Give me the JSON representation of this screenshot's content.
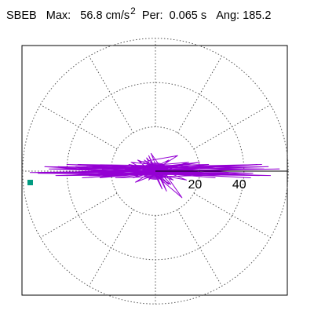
{
  "header": {
    "station": "SBEB",
    "max_label": "Max:",
    "max_value": "56.8",
    "max_unit": "cm/s",
    "max_unit_sup": "2",
    "per_label": "Per:",
    "per_value": "0.065 s",
    "ang_label": "Ang:",
    "ang_value": "185.2"
  },
  "colors": {
    "trace": "#9400d3",
    "peak_marker": "#009b80",
    "frame": "#000000",
    "grid": "#555555"
  },
  "chart_data": {
    "type": "polar-orbit",
    "title": "SBEB",
    "units": "cm/s^2",
    "max": 56.8,
    "period_s": 0.065,
    "angle_deg": 185.2,
    "rings": [
      20,
      40,
      60
    ],
    "ring_labels": [
      "20",
      "40"
    ],
    "spokes_deg": [
      0,
      30,
      60,
      90,
      120,
      150,
      180,
      210,
      240,
      270,
      300,
      330
    ],
    "axis_max": 60,
    "peak_point": {
      "r": 56.8,
      "angle_deg": 185.2
    },
    "orbit_points": [
      [
        0,
        0
      ],
      [
        9,
        2
      ],
      [
        -6,
        -1
      ],
      [
        14,
        3
      ],
      [
        -13,
        1
      ],
      [
        21,
        -2
      ],
      [
        -18,
        -3
      ],
      [
        26,
        2
      ],
      [
        -24,
        1
      ],
      [
        33,
        -1
      ],
      [
        -29,
        -2
      ],
      [
        38,
        1
      ],
      [
        -36,
        2
      ],
      [
        44,
        -1
      ],
      [
        -41,
        -2
      ],
      [
        48,
        3
      ],
      [
        -47,
        1
      ],
      [
        52,
        -2
      ],
      [
        -53,
        -1
      ],
      [
        56,
        1
      ],
      [
        -56.6,
        -0.6
      ],
      [
        47,
        -2
      ],
      [
        -44,
        2
      ],
      [
        37,
        1
      ],
      [
        -33,
        -3
      ],
      [
        28,
        2
      ],
      [
        -22,
        1
      ],
      [
        16,
        -2
      ],
      [
        -12,
        3
      ],
      [
        8,
        -4
      ],
      [
        -5,
        5
      ],
      [
        6,
        -6
      ],
      [
        -7,
        4
      ],
      [
        10,
        7
      ],
      [
        -9,
        -5
      ],
      [
        12,
        3
      ],
      [
        -15,
        -2
      ],
      [
        20,
        4
      ],
      [
        -26,
        -1
      ],
      [
        31,
        2
      ],
      [
        -35,
        3
      ],
      [
        41,
        -1
      ],
      [
        -45,
        -2
      ],
      [
        49,
        1
      ],
      [
        -50,
        2
      ],
      [
        43,
        -3
      ],
      [
        -39,
        1
      ],
      [
        30,
        2
      ],
      [
        -25,
        -3
      ],
      [
        18,
        1
      ],
      [
        -11,
        4
      ],
      [
        7,
        -6
      ],
      [
        -4,
        6
      ],
      [
        3,
        -8
      ],
      [
        -3,
        7
      ],
      [
        5,
        -9
      ],
      [
        -2,
        8
      ],
      [
        12,
        -12
      ],
      [
        -8,
        5
      ],
      [
        14,
        -4
      ],
      [
        -19,
        2
      ],
      [
        24,
        3
      ],
      [
        -30,
        -2
      ],
      [
        35,
        1
      ],
      [
        -40,
        3
      ],
      [
        45,
        -2
      ],
      [
        -48,
        1
      ],
      [
        51,
        2
      ],
      [
        -52,
        -1
      ],
      [
        46,
        3
      ],
      [
        -42,
        -2
      ],
      [
        36,
        1
      ],
      [
        -31,
        2
      ],
      [
        27,
        -3
      ],
      [
        -21,
        1
      ],
      [
        15,
        4
      ],
      [
        -10,
        -3
      ],
      [
        6,
        5
      ],
      [
        -3,
        -4
      ],
      [
        2,
        3
      ],
      [
        -1,
        -2
      ],
      [
        0,
        0
      ]
    ]
  }
}
